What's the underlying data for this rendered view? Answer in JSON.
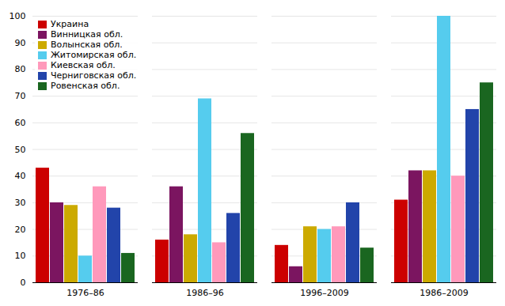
{
  "chart_data": {
    "type": "bar",
    "categories": [
      "1976–86",
      "1986–96",
      "1996–2009",
      "1986–2009"
    ],
    "series": [
      {
        "name": "Украина",
        "color": "#CC0000",
        "values": [
          43,
          16,
          14,
          31
        ]
      },
      {
        "name": "Винницкая обл.",
        "color": "#7B1560",
        "values": [
          30,
          36,
          6,
          42
        ]
      },
      {
        "name": "Волынская обл.",
        "color": "#CCAA00",
        "values": [
          29,
          18,
          21,
          42
        ]
      },
      {
        "name": "Житомирская обл.",
        "color": "#55CCEE",
        "values": [
          10,
          69,
          20,
          100
        ]
      },
      {
        "name": "Киевская обл.",
        "color": "#FF99BB",
        "values": [
          36,
          15,
          21,
          40
        ]
      },
      {
        "name": "Черниговская обл.",
        "color": "#2244AA",
        "values": [
          28,
          26,
          30,
          65
        ]
      },
      {
        "name": "Ровенская обл.",
        "color": "#1A6620",
        "values": [
          11,
          56,
          13,
          75
        ]
      }
    ],
    "ylim": [
      0,
      100
    ],
    "yticks": [
      0,
      10,
      20,
      30,
      40,
      50,
      60,
      70,
      80,
      90,
      100
    ],
    "grid": true,
    "legend": "upper left"
  }
}
